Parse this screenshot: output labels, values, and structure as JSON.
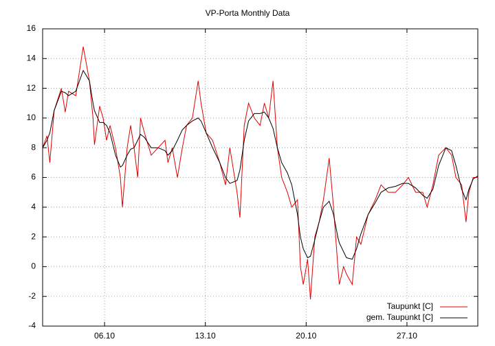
{
  "chart_data": {
    "type": "line",
    "title": "VP-Porta Monthly Data",
    "x": [
      1.7,
      2.0,
      2.2,
      2.5,
      3.0,
      3.27,
      3.5,
      4.0,
      4.52,
      4.95,
      5.2,
      5.3,
      5.66,
      5.9,
      6.14,
      6.38,
      6.76,
      7.1,
      7.24,
      7.57,
      7.81,
      8.05,
      8.3,
      8.5,
      8.77,
      9.24,
      9.72,
      10.2,
      10.4,
      10.7,
      11.06,
      11.4,
      11.7,
      12.1,
      12.5,
      12.7,
      13.06,
      13.5,
      14.0,
      14.4,
      14.7,
      15.2,
      15.4,
      15.7,
      16.0,
      16.4,
      16.8,
      17.1,
      17.4,
      17.7,
      18.0,
      18.3,
      18.7,
      19.0,
      19.4,
      19.6,
      19.8,
      20.1,
      20.3,
      20.6,
      20.9,
      21.2,
      21.6,
      21.9,
      22.2,
      22.3,
      22.6,
      22.8,
      23.2,
      23.5,
      23.8,
      24.3,
      24.8,
      25.2,
      25.7,
      26.2,
      26.7,
      27.1,
      27.6,
      28.1,
      28.4,
      28.8,
      29.2,
      29.7,
      30.1,
      30.4,
      30.8,
      31.1,
      31.3,
      31.6,
      31.92
    ],
    "series": [
      {
        "name": "Taupunkt [C]",
        "color": "#e00000",
        "values": [
          8,
          8.8,
          7,
          10.5,
          12,
          10.4,
          11.8,
          11.5,
          14.8,
          12.5,
          10,
          8.2,
          10.8,
          10,
          8.5,
          9.5,
          8,
          6,
          4,
          8,
          9.5,
          8,
          6,
          10,
          9,
          7.5,
          8,
          8.5,
          7,
          8,
          6,
          8,
          9.5,
          10,
          12.5,
          11,
          9,
          8.5,
          7,
          5.5,
          8,
          5,
          3.3,
          9.5,
          11,
          10,
          9.5,
          11,
          10,
          12.5,
          8,
          6,
          5,
          4,
          4.5,
          0,
          -1.2,
          0.5,
          -2.2,
          2,
          3,
          4.5,
          7.3,
          4,
          0,
          -1.2,
          0,
          -0.5,
          -1.2,
          2,
          1.5,
          3.5,
          4.5,
          5.5,
          5,
          5,
          5.5,
          6,
          5,
          5,
          4,
          5.5,
          7.5,
          8,
          7.5,
          6,
          5.5,
          3,
          5,
          6,
          6
        ]
      },
      {
        "name": "gem. Taupunkt [C]",
        "color": "#000000",
        "values": [
          8,
          8.5,
          9,
          10.5,
          11.8,
          11.7,
          11.5,
          11.8,
          13.2,
          12.5,
          11,
          10.5,
          9.7,
          9.7,
          9.5,
          9,
          7.5,
          6.7,
          6.8,
          7.5,
          7.9,
          8,
          8.5,
          8.9,
          8.7,
          8,
          8,
          7.8,
          7.5,
          7.8,
          8.5,
          9.2,
          9.5,
          9.8,
          10,
          9.8,
          9,
          8,
          7,
          6,
          5.6,
          5.8,
          6.5,
          8.5,
          9.8,
          10.3,
          10.3,
          10.4,
          10,
          9.3,
          8,
          7,
          6.3,
          5.5,
          3.5,
          2,
          1.2,
          0.6,
          0.7,
          1.8,
          3,
          4,
          4.4,
          3.5,
          2,
          1.6,
          1,
          0.6,
          0.5,
          1.2,
          2.2,
          3.5,
          4.3,
          5,
          5.3,
          5.4,
          5.6,
          5.6,
          5.3,
          4.8,
          4.6,
          5.2,
          6.8,
          8,
          7.8,
          6.8,
          5.2,
          4.5,
          5.2,
          5.9,
          6.1
        ]
      }
    ],
    "xlim": [
      1.7,
      31.92
    ],
    "xticks": [
      {
        "value": 6,
        "label": "06.10"
      },
      {
        "value": 13,
        "label": "13.10"
      },
      {
        "value": 20,
        "label": "20.10"
      },
      {
        "value": 27,
        "label": "27.10"
      }
    ],
    "ylim": [
      -4,
      16
    ],
    "yticks": [
      -4,
      -2,
      0,
      2,
      4,
      6,
      8,
      10,
      12,
      14,
      16
    ],
    "grid": true,
    "legend": "lower right"
  }
}
